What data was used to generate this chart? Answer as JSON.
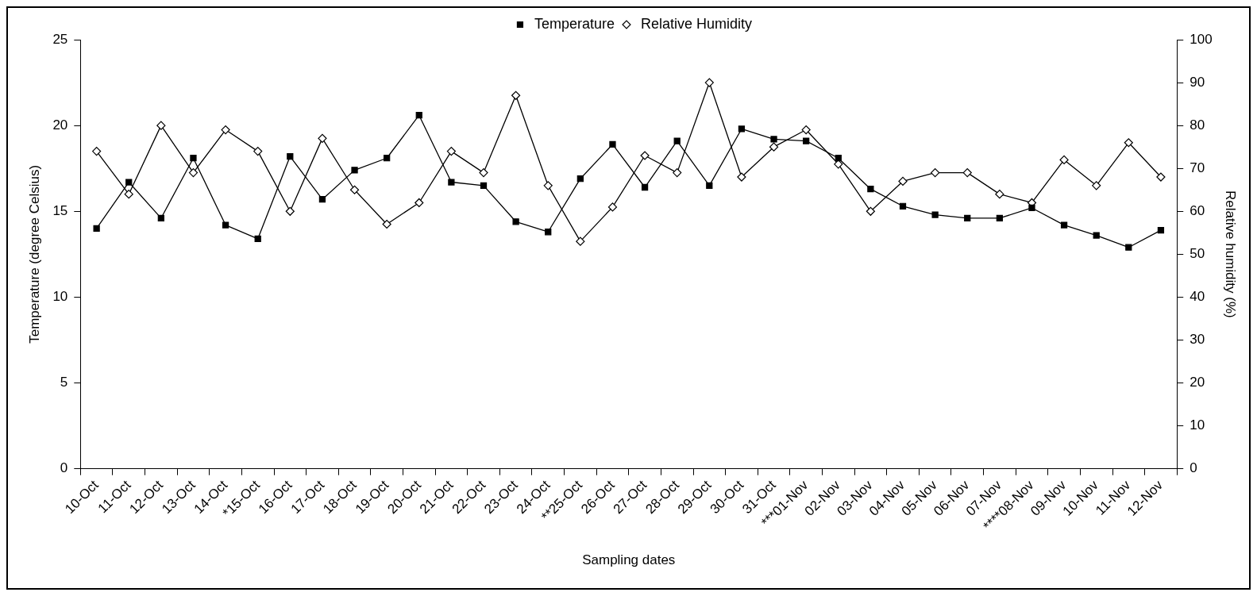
{
  "chart_data": {
    "type": "line",
    "xlabel": "Sampling dates",
    "ylabel": "Temperature (degree Celsius)",
    "y2label": "Relative humidity (%)",
    "categories": [
      "10-Oct",
      "11-Oct",
      "12-Oct",
      "13-Oct",
      "14-Oct",
      "*15-Oct",
      "16-Oct",
      "17-Oct",
      "18-Oct",
      "19-Oct",
      "20-Oct",
      "21-Oct",
      "22-Oct",
      "23-Oct",
      "24-Oct",
      "**25-Oct",
      "26-Oct",
      "27-Oct",
      "28-Oct",
      "29-Oct",
      "30-Oct",
      "31-Oct",
      "***01-Nov",
      "02-Nov",
      "03-Nov",
      "04-Nov",
      "05-Nov",
      "06-Nov",
      "07-Nov",
      "****08-Nov",
      "09-Nov",
      "10-Nov",
      "11-Nov",
      "12-Nov"
    ],
    "series": [
      {
        "name": "Temperature",
        "color": "#000000",
        "marker": "square",
        "values": [
          14.0,
          16.7,
          14.6,
          18.1,
          14.2,
          13.4,
          18.2,
          15.7,
          17.4,
          18.1,
          20.6,
          16.7,
          16.5,
          14.4,
          13.8,
          16.9,
          18.9,
          16.4,
          19.1,
          16.5,
          19.8,
          19.2,
          19.1,
          18.1,
          16.3,
          15.3,
          14.8,
          14.6,
          14.6,
          15.2,
          14.2,
          13.6,
          12.9,
          13.9
        ]
      },
      {
        "name": "Relative Humidity",
        "color": "#000000",
        "marker": "diamond",
        "axis": "y2",
        "values": [
          74,
          64,
          80,
          69,
          79,
          74,
          60,
          77,
          65,
          57,
          62,
          74,
          69,
          87,
          66,
          53,
          61,
          73,
          69,
          90,
          68,
          75,
          79,
          71,
          60,
          67,
          69,
          69,
          64,
          62,
          72,
          66,
          76,
          68
        ]
      }
    ],
    "ylim": [
      0,
      25
    ],
    "yticks": [
      0,
      5,
      10,
      15,
      20,
      25
    ],
    "y2lim": [
      0,
      100
    ],
    "y2ticks": [
      0,
      10,
      20,
      30,
      40,
      50,
      60,
      70,
      80,
      90,
      100
    ],
    "grid": false,
    "legend": "top",
    "line_style": "solid"
  }
}
